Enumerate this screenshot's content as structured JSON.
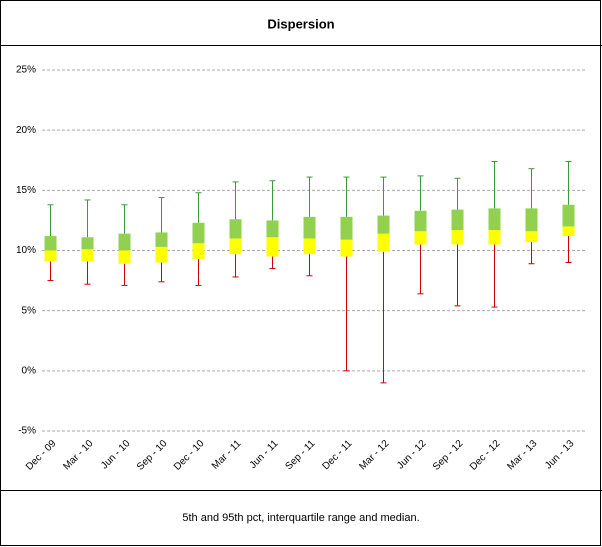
{
  "chart_data": {
    "type": "box",
    "title": "Dispersion",
    "caption": "5th and 95th pct, interquartile range and median.",
    "categories": [
      "Dec - 09",
      "Mar - 10",
      "Jun - 10",
      "Sep - 10",
      "Dec - 10",
      "Mar - 11",
      "Jun - 11",
      "Sep - 11",
      "Dec - 11",
      "Mar - 12",
      "Jun - 12",
      "Sep - 12",
      "Dec - 12",
      "Mar - 13",
      "Jun - 13"
    ],
    "p5": [
      7.5,
      7.2,
      7.1,
      7.4,
      7.1,
      7.8,
      8.5,
      7.9,
      0.0,
      -1.0,
      6.4,
      5.4,
      5.3,
      8.9,
      9.0
    ],
    "q1": [
      9.1,
      9.1,
      8.9,
      9.0,
      9.3,
      9.7,
      9.5,
      9.7,
      9.5,
      9.9,
      10.5,
      10.5,
      10.5,
      10.7,
      11.2
    ],
    "median": [
      10.0,
      10.1,
      10.0,
      10.3,
      10.6,
      11.0,
      11.1,
      11.0,
      10.9,
      11.4,
      11.6,
      11.7,
      11.7,
      11.6,
      12.0
    ],
    "q3": [
      11.2,
      11.1,
      11.4,
      11.5,
      12.3,
      12.6,
      12.5,
      12.8,
      12.8,
      12.9,
      13.3,
      13.4,
      13.5,
      13.5,
      13.8
    ],
    "p95": [
      13.8,
      14.2,
      13.8,
      14.4,
      14.8,
      15.7,
      15.8,
      16.1,
      16.1,
      16.1,
      16.2,
      16.0,
      17.4,
      16.8,
      17.4
    ],
    "colors": {
      "lower_whisker": "#d00000",
      "lower_box": "#ffff00",
      "upper_box": "#92d050",
      "upper_whisker": "#3a9a3a"
    },
    "ylim": [
      -5,
      25
    ],
    "yticks": [
      {
        "value": -5,
        "label": "-5%"
      },
      {
        "value": 0,
        "label": "0%"
      },
      {
        "value": 5,
        "label": "5%"
      },
      {
        "value": 10,
        "label": "10%"
      },
      {
        "value": 15,
        "label": "15%"
      },
      {
        "value": 20,
        "label": "20%"
      },
      {
        "value": 25,
        "label": "25%"
      }
    ],
    "grid": true
  }
}
